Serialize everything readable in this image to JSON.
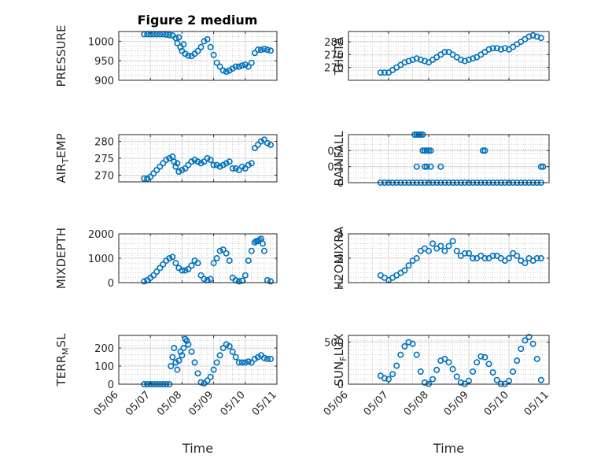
{
  "figure": {
    "title": "Figure 2 medium"
  },
  "style": {
    "marker_color": "#0072BD",
    "grid_color": "#b0b0b0",
    "axis_color": "#262626"
  },
  "chart_data": [
    {
      "type": "scatter",
      "panel": "PRESSURE",
      "ylabel": "PRESSURE",
      "xlabel": "",
      "xlim": [
        0,
        5
      ],
      "ylim": [
        900,
        1025
      ],
      "yticks": [
        900,
        950,
        1000
      ],
      "x": [
        0.8,
        0.9,
        1.0,
        1.1,
        1.2,
        1.3,
        1.4,
        1.5,
        1.6,
        1.7,
        1.8,
        1.85,
        1.9,
        1.95,
        2.0,
        2.05,
        2.1,
        2.2,
        2.3,
        2.4,
        2.5,
        2.6,
        2.7,
        2.8,
        2.9,
        3.0,
        3.1,
        3.2,
        3.3,
        3.4,
        3.5,
        3.6,
        3.7,
        3.8,
        3.9,
        4.0,
        4.1,
        4.2,
        4.3,
        4.4,
        4.5,
        4.6,
        4.7,
        4.8
      ],
      "y": [
        1018,
        1018,
        1018,
        1018,
        1018,
        1018,
        1018,
        1017,
        1016,
        1015,
        1008,
        995,
        1010,
        985,
        975,
        992,
        968,
        963,
        962,
        968,
        975,
        985,
        1000,
        1005,
        985,
        965,
        945,
        935,
        925,
        922,
        925,
        930,
        935,
        935,
        938,
        940,
        935,
        945,
        970,
        978,
        978,
        980,
        978,
        976
      ]
    },
    {
      "type": "scatter",
      "panel": "THETA",
      "ylabel": "THETA",
      "xlabel": "",
      "xlim": [
        0,
        5
      ],
      "ylim": [
        265,
        284
      ],
      "yticks": [
        270,
        275,
        280
      ],
      "x": [
        0.8,
        0.9,
        1.0,
        1.1,
        1.2,
        1.3,
        1.4,
        1.5,
        1.6,
        1.7,
        1.8,
        1.9,
        2.0,
        2.1,
        2.2,
        2.3,
        2.4,
        2.5,
        2.6,
        2.7,
        2.8,
        2.9,
        3.0,
        3.1,
        3.2,
        3.3,
        3.4,
        3.5,
        3.6,
        3.7,
        3.8,
        3.9,
        4.0,
        4.1,
        4.2,
        4.3,
        4.4,
        4.5,
        4.6,
        4.7,
        4.8
      ],
      "y": [
        268,
        268,
        268,
        269,
        270,
        271,
        272,
        272.5,
        273,
        273.5,
        273,
        272.5,
        272,
        273,
        274,
        275,
        276,
        276,
        275,
        274,
        273,
        272.5,
        273,
        273.5,
        274,
        275,
        276,
        277,
        277.5,
        277.5,
        277,
        277.5,
        277,
        278,
        279,
        280,
        281,
        282,
        282.5,
        282,
        281.5
      ]
    },
    {
      "type": "scatter",
      "panel": "AIR_TEMP",
      "ylabel": "AIR_TEMP",
      "xlabel": "",
      "xlim": [
        0,
        5
      ],
      "ylim": [
        268,
        282
      ],
      "yticks": [
        270,
        275,
        280
      ],
      "x": [
        0.8,
        0.9,
        1.0,
        1.1,
        1.2,
        1.3,
        1.4,
        1.5,
        1.6,
        1.7,
        1.75,
        1.8,
        1.85,
        1.9,
        2.0,
        2.1,
        2.2,
        2.3,
        2.4,
        2.5,
        2.6,
        2.7,
        2.8,
        2.9,
        3.0,
        3.1,
        3.2,
        3.3,
        3.4,
        3.5,
        3.6,
        3.7,
        3.8,
        3.9,
        4.0,
        4.1,
        4.2,
        4.3,
        4.4,
        4.5,
        4.6,
        4.7,
        4.8
      ],
      "y": [
        269,
        269,
        269.5,
        270.5,
        271.5,
        272.5,
        273.5,
        274.5,
        275,
        275.5,
        274,
        272.5,
        273.5,
        271,
        271.5,
        272,
        273,
        274,
        274.5,
        274,
        273.5,
        274,
        275,
        274.5,
        273,
        273,
        272.5,
        273,
        273.5,
        274,
        272,
        272,
        271.5,
        272.5,
        272,
        273,
        273.5,
        278,
        279,
        280,
        280.5,
        279.5,
        279
      ]
    },
    {
      "type": "scatter",
      "panel": "RAINFALL",
      "ylabel": "RAINFALL",
      "xlabel": "",
      "xlim": [
        0,
        5
      ],
      "ylim": [
        0,
        0.3
      ],
      "yticks": [
        0,
        0.1,
        0.2
      ],
      "x": [
        0.8,
        0.9,
        1.0,
        1.1,
        1.2,
        1.3,
        1.4,
        1.5,
        1.6,
        1.7,
        1.8,
        1.9,
        2.0,
        2.1,
        2.2,
        2.3,
        2.4,
        2.5,
        2.6,
        2.7,
        2.8,
        2.9,
        3.0,
        3.1,
        3.2,
        3.3,
        3.4,
        3.5,
        3.6,
        3.7,
        3.8,
        3.9,
        4.0,
        4.1,
        4.2,
        4.3,
        4.4,
        4.5,
        4.6,
        4.7,
        4.8,
        1.65,
        1.7,
        1.75,
        1.8,
        1.85,
        1.9,
        1.95,
        2.0,
        2.05,
        1.7,
        2.05,
        2.3,
        3.35,
        3.4,
        4.8,
        4.85,
        1.85,
        1.9,
        1.95
      ],
      "y": [
        0,
        0,
        0,
        0,
        0,
        0,
        0,
        0,
        0,
        0,
        0,
        0,
        0,
        0,
        0,
        0,
        0,
        0,
        0,
        0,
        0,
        0,
        0,
        0,
        0,
        0,
        0,
        0,
        0,
        0,
        0,
        0,
        0,
        0,
        0,
        0,
        0,
        0,
        0,
        0,
        0,
        0.3,
        0.3,
        0.3,
        0.3,
        0.2,
        0.2,
        0.2,
        0.2,
        0.2,
        0.1,
        0.1,
        0.1,
        0.2,
        0.2,
        0.1,
        0.1,
        0.3,
        0.1,
        0.1
      ]
    },
    {
      "type": "scatter",
      "panel": "MIXDEPTH",
      "ylabel": "MIXDEPTH",
      "xlabel": "",
      "xlim": [
        0,
        5
      ],
      "ylim": [
        0,
        2000
      ],
      "yticks": [
        0,
        1000,
        2000
      ],
      "x": [
        0.8,
        0.9,
        1.0,
        1.1,
        1.2,
        1.3,
        1.4,
        1.5,
        1.6,
        1.7,
        1.8,
        1.9,
        2.0,
        2.1,
        2.2,
        2.3,
        2.4,
        2.5,
        2.6,
        2.7,
        2.8,
        2.9,
        3.0,
        3.1,
        3.2,
        3.3,
        3.4,
        3.5,
        3.6,
        3.7,
        3.8,
        3.9,
        4.0,
        4.1,
        4.2,
        4.3,
        4.35,
        4.4,
        4.45,
        4.5,
        4.55,
        4.6,
        4.7,
        4.8
      ],
      "y": [
        50,
        100,
        200,
        300,
        450,
        600,
        750,
        900,
        1000,
        1050,
        800,
        600,
        500,
        500,
        550,
        700,
        900,
        800,
        300,
        150,
        100,
        150,
        800,
        1000,
        1300,
        1350,
        1200,
        900,
        200,
        100,
        50,
        80,
        300,
        900,
        1300,
        1650,
        1700,
        1700,
        1750,
        1800,
        1600,
        1300,
        100,
        50
      ]
    },
    {
      "type": "scatter",
      "panel": "H2OMIXRA",
      "ylabel": "H2OMIXRA",
      "xlabel": "",
      "xlim": [
        0,
        5
      ],
      "ylim": [
        2,
        4
      ],
      "yticks": [
        2,
        3,
        4
      ],
      "x": [
        0.8,
        0.9,
        1.0,
        1.1,
        1.2,
        1.3,
        1.4,
        1.5,
        1.6,
        1.7,
        1.8,
        1.9,
        2.0,
        2.1,
        2.2,
        2.3,
        2.4,
        2.5,
        2.6,
        2.7,
        2.8,
        2.9,
        3.0,
        3.1,
        3.2,
        3.3,
        3.4,
        3.5,
        3.6,
        3.7,
        3.8,
        3.9,
        4.0,
        4.1,
        4.2,
        4.3,
        4.4,
        4.5,
        4.6,
        4.7,
        4.8
      ],
      "y": [
        2.3,
        2.2,
        2.1,
        2.2,
        2.3,
        2.4,
        2.5,
        2.7,
        2.9,
        3.0,
        3.3,
        3.4,
        3.3,
        3.6,
        3.4,
        3.5,
        3.3,
        3.5,
        3.7,
        3.3,
        3.1,
        3.2,
        3.2,
        3.0,
        3.0,
        3.1,
        3.0,
        3.0,
        3.1,
        3.1,
        3.0,
        2.9,
        3.0,
        3.2,
        3.1,
        2.9,
        2.8,
        3.0,
        2.9,
        3.0,
        3.0
      ]
    },
    {
      "type": "scatter",
      "panel": "TERR_MSL",
      "ylabel": "TERR_MSL",
      "xlabel": "Time",
      "xlim": [
        0,
        5
      ],
      "ylim": [
        0,
        270
      ],
      "yticks": [
        0,
        100,
        200
      ],
      "x": [
        0.8,
        0.9,
        1.0,
        1.1,
        1.2,
        1.3,
        1.4,
        1.5,
        1.6,
        1.65,
        1.7,
        1.75,
        1.8,
        1.85,
        1.9,
        1.95,
        2.0,
        2.05,
        2.1,
        2.15,
        2.2,
        2.3,
        2.4,
        2.5,
        2.6,
        2.7,
        2.8,
        2.9,
        3.0,
        3.1,
        3.2,
        3.3,
        3.4,
        3.5,
        3.6,
        3.7,
        3.8,
        3.9,
        4.0,
        4.1,
        4.2,
        4.3,
        4.4,
        4.5,
        4.6,
        4.7,
        4.8
      ],
      "y": [
        0,
        0,
        0,
        0,
        0,
        0,
        0,
        0,
        0,
        100,
        150,
        200,
        120,
        80,
        130,
        180,
        160,
        200,
        250,
        240,
        220,
        180,
        120,
        60,
        10,
        5,
        20,
        40,
        80,
        120,
        160,
        200,
        220,
        210,
        180,
        150,
        120,
        120,
        120,
        125,
        120,
        140,
        150,
        160,
        145,
        140,
        140
      ]
    },
    {
      "type": "scatter",
      "panel": "SUN_FLUX",
      "ylabel": "SUN_FLUX",
      "xlabel": "Time",
      "xlim": [
        0,
        5
      ],
      "ylim": [
        0,
        580
      ],
      "yticks": [
        0,
        500
      ],
      "x": [
        0.8,
        0.9,
        1.0,
        1.1,
        1.2,
        1.3,
        1.4,
        1.5,
        1.6,
        1.7,
        1.8,
        1.9,
        2.0,
        2.1,
        2.2,
        2.3,
        2.4,
        2.5,
        2.6,
        2.7,
        2.8,
        2.9,
        3.0,
        3.1,
        3.2,
        3.3,
        3.4,
        3.5,
        3.6,
        3.7,
        3.8,
        3.9,
        4.0,
        4.1,
        4.2,
        4.3,
        4.4,
        4.5,
        4.6,
        4.7,
        4.8
      ],
      "y": [
        100,
        70,
        60,
        120,
        220,
        350,
        450,
        500,
        480,
        350,
        150,
        20,
        5,
        60,
        170,
        280,
        300,
        260,
        180,
        90,
        20,
        5,
        40,
        150,
        260,
        330,
        320,
        240,
        140,
        50,
        5,
        5,
        40,
        150,
        280,
        420,
        520,
        560,
        480,
        300,
        50
      ]
    }
  ],
  "axes": {
    "xticks": [
      0,
      1,
      2,
      3,
      4,
      5
    ],
    "xtick_labels": [
      "05/06",
      "05/07",
      "05/08",
      "05/09",
      "05/10",
      "05/11"
    ],
    "bottom_xlabel": "Time"
  },
  "labels": {
    "p0": {
      "main": "PRESSURE",
      "sub": "",
      "tail": ""
    },
    "p1": {
      "main": "THETA",
      "sub": "",
      "tail": ""
    },
    "p2": {
      "main": "AIR",
      "sub": "T",
      "tail": "EMP"
    },
    "p3": {
      "main": "RAINFALL",
      "sub": "",
      "tail": ""
    },
    "p4": {
      "main": "MIXDEPTH",
      "sub": "",
      "tail": ""
    },
    "p5": {
      "main": "H2OMIXRA",
      "sub": "",
      "tail": ""
    },
    "p6": {
      "main": "TERR",
      "sub": "M",
      "tail": "SL"
    },
    "p7": {
      "main": "SUN",
      "sub": "F",
      "tail": "LUX"
    }
  }
}
